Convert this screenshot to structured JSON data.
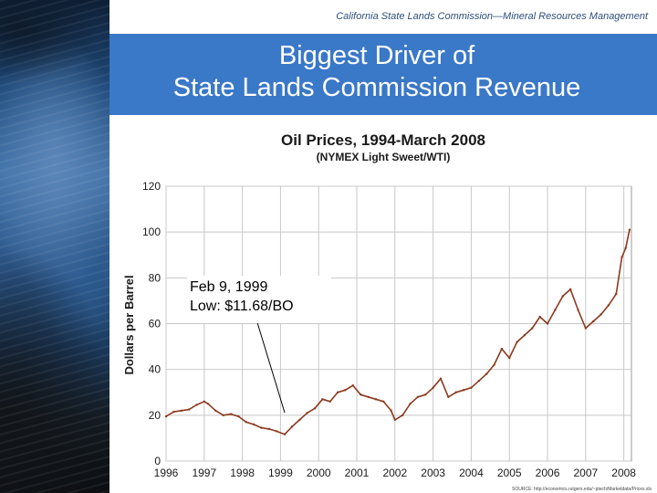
{
  "header": {
    "subtitle": "California State Lands Commission—Mineral Resources Management",
    "title_line1": "Biggest Driver of",
    "title_line2": "State Lands Commission Revenue"
  },
  "colors": {
    "title_band": "#3a78c8",
    "series": "#8b3a1e",
    "grid": "#c8c8c8"
  },
  "annotation": {
    "line1": "Feb 9, 1999",
    "line2": "Low: $11.68/BO"
  },
  "chart_data": {
    "type": "line",
    "title": "Oil Prices, 1994-March 2008",
    "subtitle": "(NYMEX Light Sweet/WTI)",
    "xlabel": "",
    "ylabel": "Dollars per Barrel",
    "xlim": [
      1996,
      2008.2
    ],
    "ylim": [
      0,
      120
    ],
    "x_ticks": [
      "1996",
      "1997",
      "1998",
      "1999",
      "2000",
      "2001",
      "2002",
      "2003",
      "2004",
      "2005",
      "2006",
      "2007",
      "2008"
    ],
    "y_ticks": [
      "0",
      "20",
      "40",
      "60",
      "80",
      "100",
      "120"
    ],
    "grid": true,
    "source_note": "SOURCE: http://economics.rutgers.edu/~ptech/Marketdata/Prices.xls",
    "series": [
      {
        "x": [
          1996.0,
          1996.2,
          1996.4,
          1996.6,
          1996.8,
          1997.0,
          1997.1,
          1997.3,
          1997.5,
          1997.7,
          1997.9,
          1998.1,
          1998.3,
          1998.5,
          1998.7,
          1998.9,
          1999.11,
          1999.3,
          1999.5,
          1999.7,
          1999.9,
          2000.1,
          2000.3,
          2000.5,
          2000.7,
          2000.9,
          2001.1,
          2001.3,
          2001.5,
          2001.7,
          2001.9,
          2002.0,
          2002.2,
          2002.4,
          2002.6,
          2002.8,
          2003.0,
          2003.2,
          2003.4,
          2003.6,
          2003.8,
          2004.0,
          2004.2,
          2004.4,
          2004.6,
          2004.8,
          2005.0,
          2005.2,
          2005.4,
          2005.6,
          2005.8,
          2006.0,
          2006.2,
          2006.4,
          2006.6,
          2006.8,
          2007.0,
          2007.2,
          2007.4,
          2007.6,
          2007.8,
          2007.95,
          2008.05,
          2008.15
        ],
        "values": [
          19.5,
          21.5,
          22,
          22.5,
          24.5,
          26,
          25,
          22,
          20,
          20.5,
          19.5,
          17,
          16,
          14.5,
          14,
          13,
          11.68,
          15,
          18,
          21,
          23,
          27,
          26,
          30,
          31,
          33,
          29,
          28,
          27,
          26,
          22,
          18,
          20,
          25,
          28,
          29,
          32,
          36,
          28,
          30,
          31,
          32,
          35,
          38,
          42,
          49,
          45,
          52,
          55,
          58,
          63,
          60,
          66,
          72,
          75,
          66,
          58,
          61,
          64,
          68,
          73,
          89,
          93,
          101
        ]
      }
    ]
  }
}
